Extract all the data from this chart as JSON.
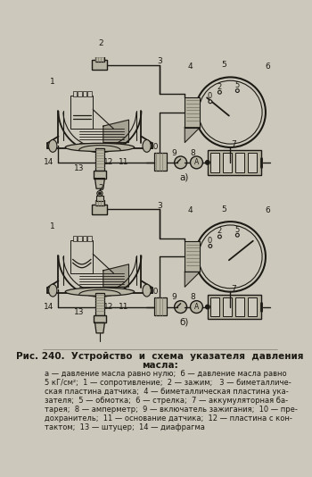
{
  "bg_color": "#ccc8bc",
  "ink": "#1c1a14",
  "gray": "#807c6c",
  "lt": "#b8b4a4",
  "title_line1": "Рис. 240.  Устройство  и  схема  указателя  давления",
  "title_line2": "масла:",
  "caption_lines": [
    "а — давление масла равно нулю;  б — давление масла равно",
    "5 кГ/см²;  1 — сопротивление;  2 — зажим;   3 — биметалличе-",
    "ская пластина датчика;  4 — биметаллическая пластина ука-",
    "зателя;  5 — обмотка;  6 — стрелка;  7 — аккумуляторная ба-",
    "тарея;  8 — амперметр;  9 — включатель зажигания;  10 — пре-",
    "дохранитель;  11 — основание датчика;  12 — пластина с кон-",
    "тактом;  13 — штуцер;  14 — диафрагма"
  ],
  "label_a": "а)",
  "label_b": "б)"
}
